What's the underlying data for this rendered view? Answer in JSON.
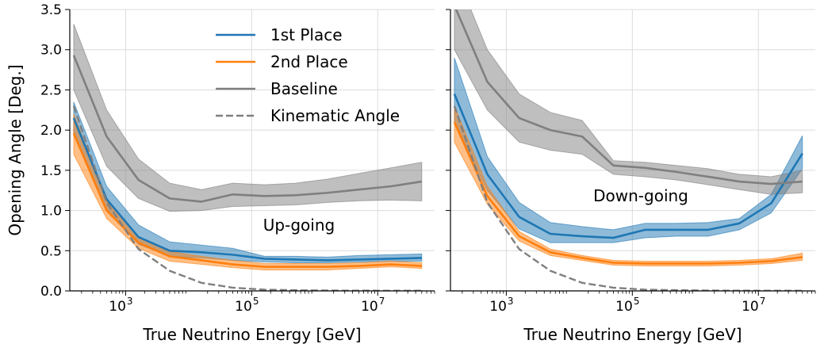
{
  "chart_data": [
    {
      "type": "line",
      "annotation": "Up-going",
      "xlabel": "True Neutrino Energy [GeV]",
      "ylabel": "Opening Angle [Deg.]",
      "xscale": "log",
      "xlim": [
        130,
        80000000
      ],
      "ylim": [
        0.0,
        3.5
      ],
      "yticks": [
        "0.0",
        "0.5",
        "1.0",
        "1.5",
        "2.0",
        "2.5",
        "3.0",
        "3.5"
      ],
      "xticks": [
        {
          "value": 1000,
          "base": "10",
          "exp": "3"
        },
        {
          "value": 100000,
          "base": "10",
          "exp": "5"
        },
        {
          "value": 10000000,
          "base": "10",
          "exp": "7"
        }
      ],
      "grid": true,
      "legend_position": "top-right",
      "x": [
        150,
        500,
        1600,
        5000,
        16000,
        50000,
        160000,
        500000,
        1600000,
        5000000,
        16000000,
        50000000
      ],
      "series": [
        {
          "name": "1st Place",
          "color": "#1f77b4",
          "style": "solid",
          "values": [
            2.15,
            1.14,
            0.67,
            0.5,
            0.48,
            0.45,
            0.4,
            0.39,
            0.38,
            0.39,
            0.4,
            0.41
          ],
          "lower": [
            1.95,
            1.02,
            0.58,
            0.43,
            0.41,
            0.38,
            0.36,
            0.35,
            0.35,
            0.36,
            0.37,
            0.37
          ],
          "upper": [
            2.35,
            1.3,
            0.82,
            0.61,
            0.57,
            0.53,
            0.43,
            0.43,
            0.42,
            0.44,
            0.45,
            0.46
          ]
        },
        {
          "name": "2nd Place",
          "color": "#ff7f0e",
          "style": "solid",
          "values": [
            1.96,
            1.0,
            0.6,
            0.43,
            0.38,
            0.33,
            0.3,
            0.3,
            0.3,
            0.31,
            0.33,
            0.31
          ],
          "lower": [
            1.7,
            0.9,
            0.53,
            0.37,
            0.33,
            0.29,
            0.26,
            0.26,
            0.26,
            0.28,
            0.3,
            0.28
          ],
          "upper": [
            2.2,
            1.12,
            0.68,
            0.49,
            0.43,
            0.38,
            0.34,
            0.34,
            0.34,
            0.35,
            0.37,
            0.35
          ]
        },
        {
          "name": "Baseline",
          "color": "#7f7f7f",
          "style": "solid",
          "values": [
            2.93,
            1.92,
            1.38,
            1.15,
            1.11,
            1.2,
            1.18,
            1.19,
            1.22,
            1.26,
            1.3,
            1.36
          ],
          "lower": [
            2.5,
            1.55,
            1.15,
            0.99,
            1.0,
            1.05,
            1.06,
            1.07,
            1.1,
            1.12,
            1.13,
            1.12
          ],
          "upper": [
            3.32,
            2.25,
            1.64,
            1.34,
            1.26,
            1.34,
            1.32,
            1.34,
            1.39,
            1.46,
            1.53,
            1.6
          ]
        },
        {
          "name": "Kinematic Angle",
          "color": "#7f7f7f",
          "style": "dashed",
          "values": [
            2.3,
            1.1,
            0.52,
            0.25,
            0.1,
            0.04,
            0.015,
            0.008,
            0.004,
            0.003,
            0.002,
            0.002
          ]
        }
      ]
    },
    {
      "type": "line",
      "annotation": "Down-going",
      "xlabel": "True Neutrino Energy [GeV]",
      "ylabel": "",
      "xscale": "log",
      "xlim": [
        130,
        80000000
      ],
      "ylim": [
        0.0,
        3.5
      ],
      "xticks": [
        {
          "value": 1000,
          "base": "10",
          "exp": "3"
        },
        {
          "value": 100000,
          "base": "10",
          "exp": "5"
        },
        {
          "value": 10000000,
          "base": "10",
          "exp": "7"
        }
      ],
      "grid": true,
      "x": [
        150,
        500,
        1600,
        5000,
        16000,
        50000,
        160000,
        500000,
        1600000,
        5000000,
        16000000,
        50000000
      ],
      "series": [
        {
          "name": "1st Place",
          "color": "#1f77b4",
          "style": "solid",
          "values": [
            2.45,
            1.45,
            0.92,
            0.71,
            0.68,
            0.66,
            0.76,
            0.76,
            0.76,
            0.84,
            1.09,
            1.71
          ],
          "lower": [
            2.1,
            1.25,
            0.77,
            0.6,
            0.6,
            0.6,
            0.66,
            0.68,
            0.68,
            0.76,
            0.97,
            1.52
          ],
          "upper": [
            2.9,
            1.67,
            1.1,
            0.85,
            0.8,
            0.76,
            0.84,
            0.84,
            0.85,
            0.9,
            1.2,
            1.93
          ]
        },
        {
          "name": "2nd Place",
          "color": "#ff7f0e",
          "style": "solid",
          "values": [
            2.1,
            1.18,
            0.68,
            0.48,
            0.41,
            0.35,
            0.34,
            0.34,
            0.34,
            0.35,
            0.37,
            0.42
          ],
          "lower": [
            1.85,
            1.08,
            0.62,
            0.44,
            0.38,
            0.32,
            0.31,
            0.31,
            0.31,
            0.32,
            0.34,
            0.38
          ],
          "upper": [
            2.3,
            1.3,
            0.74,
            0.52,
            0.44,
            0.38,
            0.37,
            0.37,
            0.37,
            0.38,
            0.4,
            0.47
          ]
        },
        {
          "name": "Baseline",
          "color": "#7f7f7f",
          "style": "solid",
          "values": [
            3.55,
            2.6,
            2.15,
            2.0,
            1.92,
            1.56,
            1.53,
            1.48,
            1.42,
            1.36,
            1.33,
            1.36
          ],
          "lower": [
            3.0,
            2.25,
            1.85,
            1.75,
            1.7,
            1.45,
            1.42,
            1.38,
            1.32,
            1.26,
            1.2,
            1.22
          ],
          "upper": [
            4.0,
            3.0,
            2.45,
            2.22,
            2.12,
            1.62,
            1.6,
            1.56,
            1.52,
            1.45,
            1.42,
            1.5
          ]
        },
        {
          "name": "Kinematic Angle",
          "color": "#7f7f7f",
          "style": "dashed",
          "values": [
            2.3,
            1.1,
            0.52,
            0.25,
            0.1,
            0.04,
            0.015,
            0.008,
            0.004,
            0.003,
            0.002,
            0.002
          ]
        }
      ]
    }
  ]
}
